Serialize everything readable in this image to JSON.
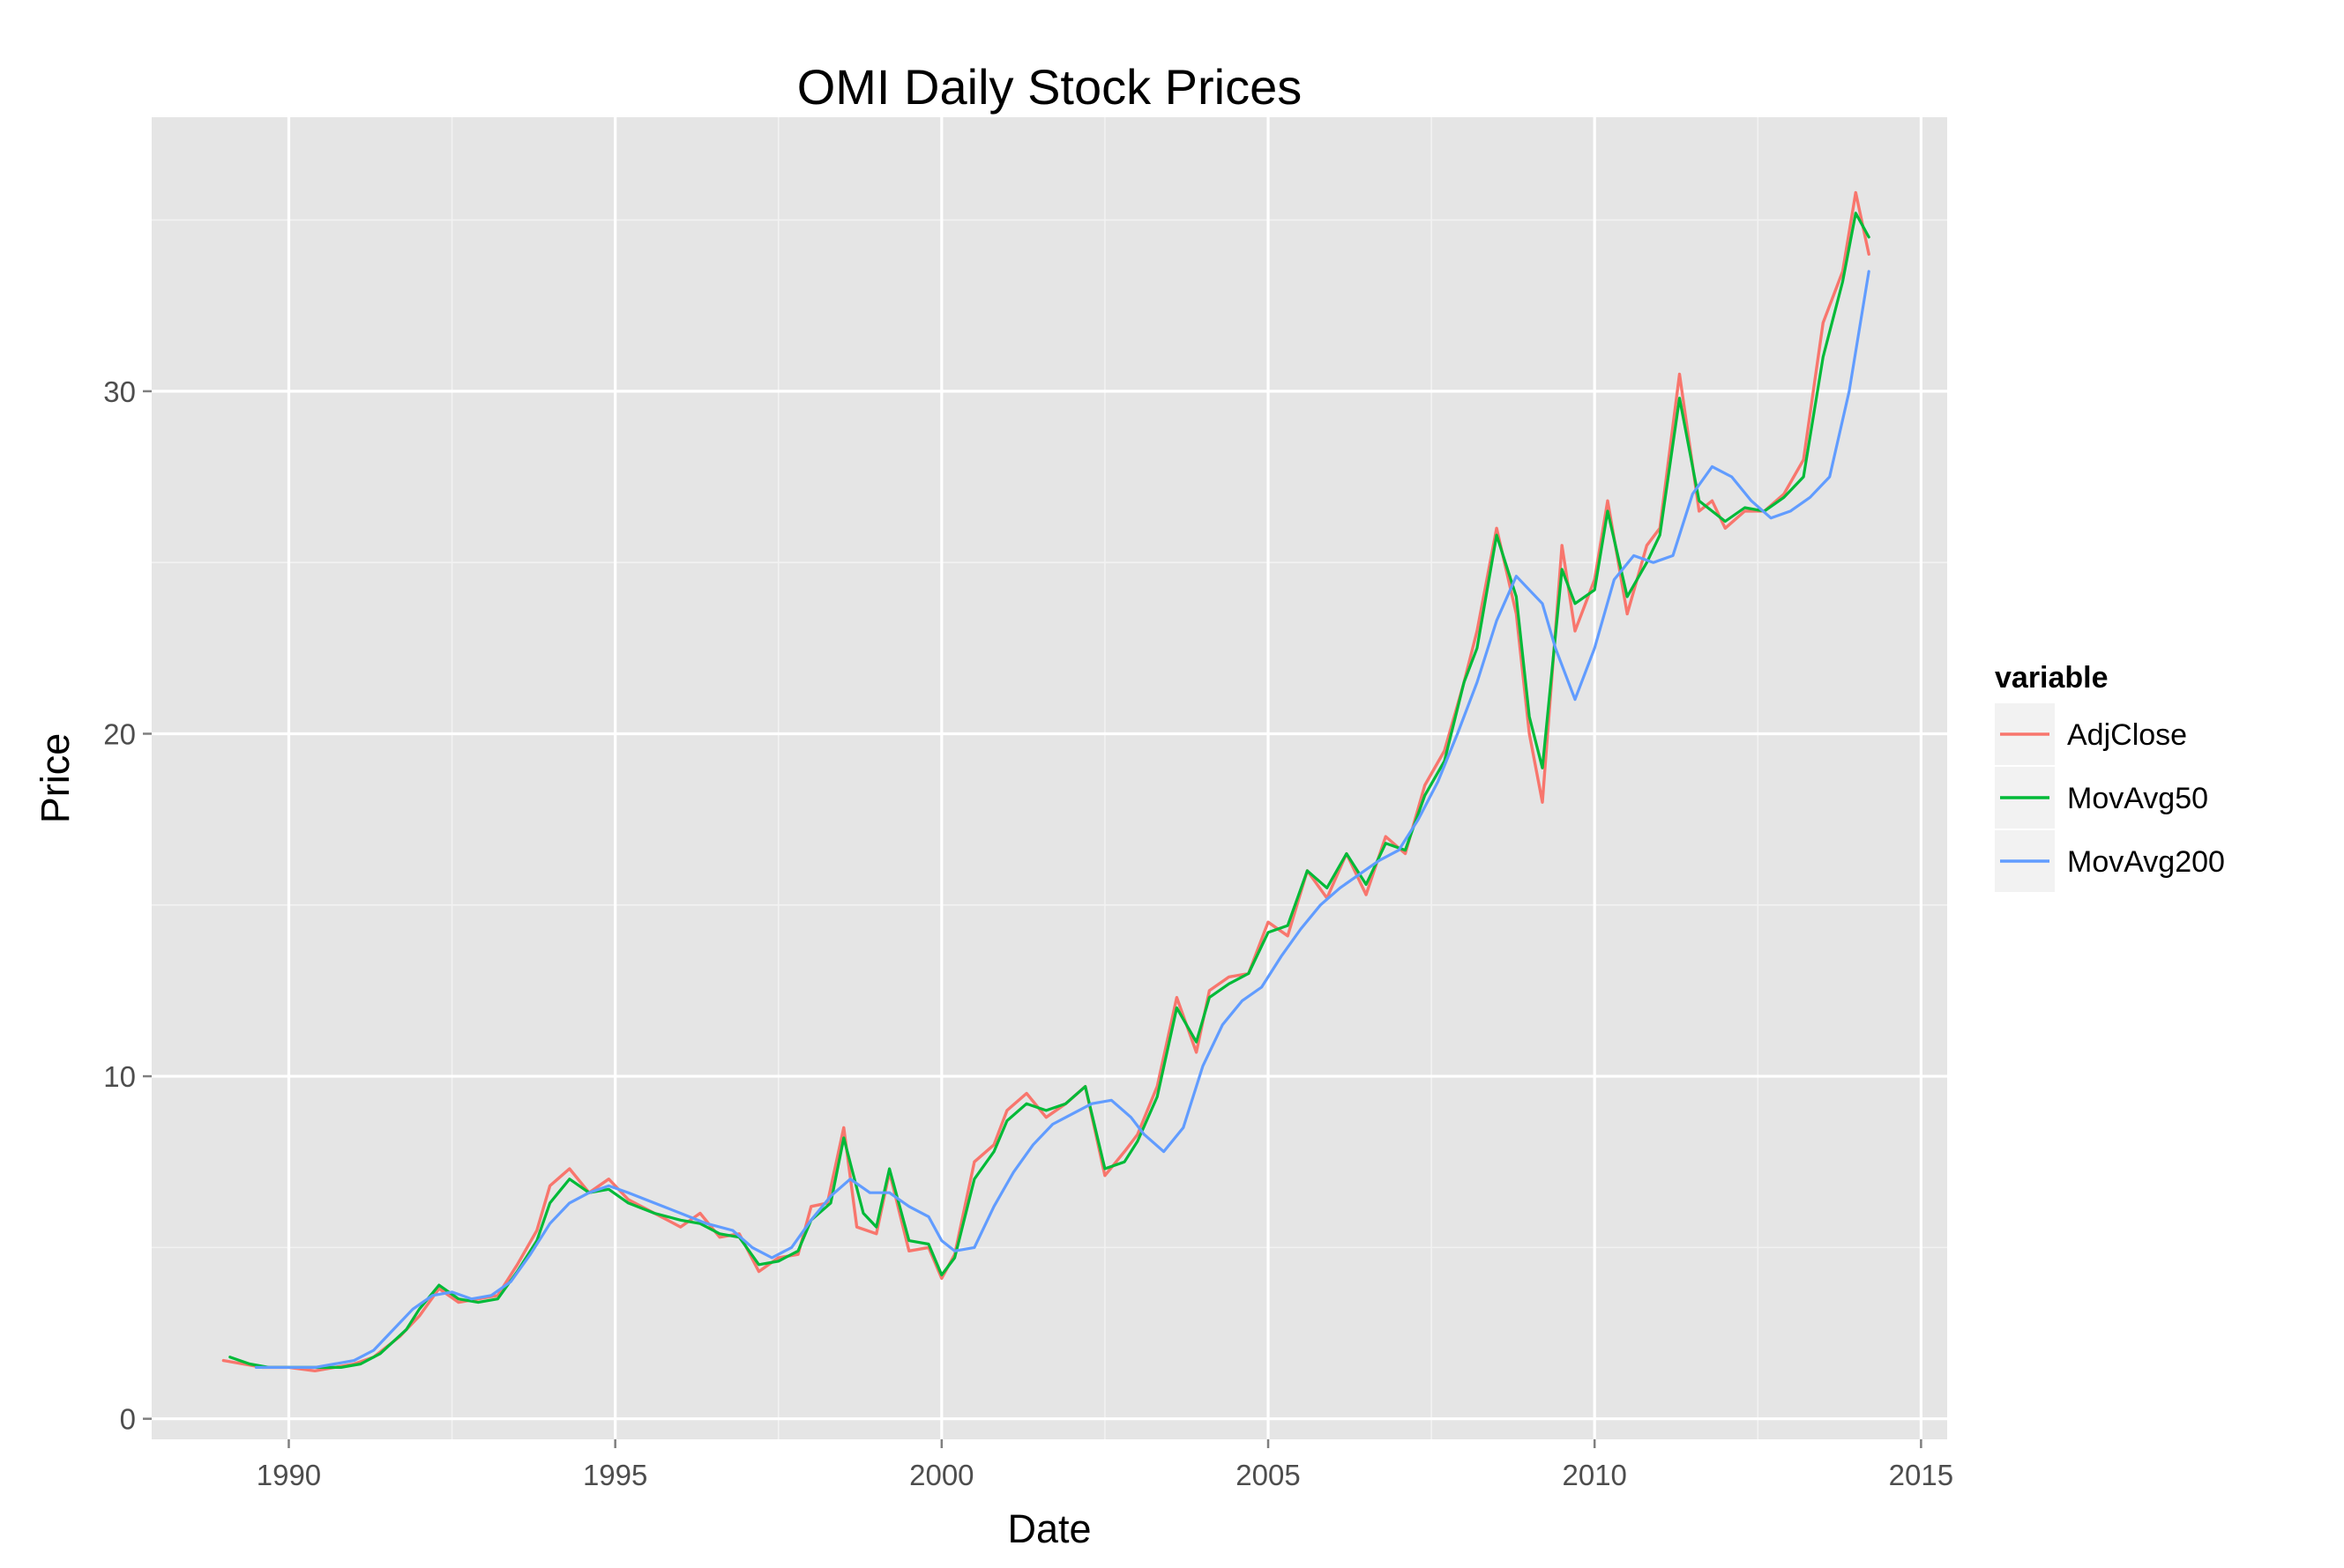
{
  "chart_data": {
    "type": "line",
    "title": "OMI Daily Stock Prices",
    "xlabel": "Date",
    "ylabel": "Price",
    "xlim": [
      1987.9,
      2015.4
    ],
    "ylim": [
      -0.6,
      38.0
    ],
    "x_ticks": [
      1990,
      1995,
      2000,
      2005,
      2010,
      2015
    ],
    "x_tick_labels": [
      "1990",
      "1995",
      "2000",
      "2005",
      "2010",
      "2015"
    ],
    "y_ticks": [
      0,
      10,
      20,
      30
    ],
    "y_tick_labels": [
      "0",
      "10",
      "20",
      "30"
    ],
    "grid": true,
    "legend": {
      "title": "variable",
      "position": "right"
    },
    "series": [
      {
        "name": "AdjClose",
        "color": "#F8766D",
        "x": [
          1989.0,
          1989.3,
          1989.6,
          1990.0,
          1990.4,
          1990.7,
          1991.0,
          1991.3,
          1991.7,
          1992.0,
          1992.3,
          1992.6,
          1992.9,
          1993.2,
          1993.5,
          1993.8,
          1994.0,
          1994.3,
          1994.6,
          1994.9,
          1995.2,
          1995.6,
          1996.0,
          1996.3,
          1996.6,
          1996.9,
          1997.2,
          1997.5,
          1997.8,
          1998.0,
          1998.25,
          1998.5,
          1998.7,
          1999.0,
          1999.2,
          1999.5,
          1999.8,
          2000.0,
          2000.2,
          2000.5,
          2000.8,
          2001.0,
          2001.3,
          2001.6,
          2001.9,
          2002.2,
          2002.5,
          2002.8,
          2003.0,
          2003.3,
          2003.6,
          2003.9,
          2004.1,
          2004.4,
          2004.7,
          2005.0,
          2005.3,
          2005.6,
          2005.9,
          2006.2,
          2006.5,
          2006.8,
          2007.1,
          2007.4,
          2007.7,
          2008.0,
          2008.2,
          2008.5,
          2008.8,
          2009.0,
          2009.2,
          2009.5,
          2009.7,
          2010.0,
          2010.2,
          2010.5,
          2010.8,
          2011.0,
          2011.3,
          2011.6,
          2011.8,
          2012.0,
          2012.3,
          2012.6,
          2012.9,
          2013.2,
          2013.5,
          2013.8,
          2014.0,
          2014.2
        ],
        "values": [
          1.7,
          1.6,
          1.5,
          1.5,
          1.4,
          1.5,
          1.6,
          1.8,
          2.4,
          3.0,
          3.8,
          3.4,
          3.5,
          3.6,
          4.5,
          5.5,
          6.8,
          7.3,
          6.6,
          7.0,
          6.4,
          6.0,
          5.6,
          6.0,
          5.3,
          5.4,
          4.3,
          4.7,
          4.8,
          6.2,
          6.3,
          8.5,
          5.6,
          5.4,
          7.2,
          4.9,
          5.0,
          4.1,
          4.8,
          7.5,
          8.0,
          9.0,
          9.5,
          8.8,
          9.2,
          9.7,
          7.1,
          7.8,
          8.3,
          9.7,
          12.3,
          10.7,
          12.5,
          12.9,
          13.0,
          14.5,
          14.1,
          16.0,
          15.2,
          16.5,
          15.3,
          17.0,
          16.5,
          18.5,
          19.5,
          21.5,
          23.0,
          26.0,
          23.5,
          20.0,
          18.0,
          25.5,
          23.0,
          24.5,
          26.8,
          23.5,
          25.5,
          26.0,
          30.5,
          26.5,
          26.8,
          26.0,
          26.5,
          26.5,
          27.0,
          28.0,
          32.0,
          33.5,
          35.8,
          34.0
        ]
      },
      {
        "name": "MovAvg50",
        "color": "#00BA38",
        "x": [
          1989.1,
          1989.4,
          1989.7,
          1990.0,
          1990.4,
          1990.8,
          1991.1,
          1991.4,
          1991.8,
          1992.0,
          1992.3,
          1992.6,
          1992.9,
          1993.2,
          1993.5,
          1993.8,
          1994.0,
          1994.3,
          1994.6,
          1994.9,
          1995.2,
          1995.6,
          1996.0,
          1996.3,
          1996.6,
          1996.9,
          1997.2,
          1997.5,
          1997.8,
          1998.0,
          1998.3,
          1998.5,
          1998.8,
          1999.0,
          1999.2,
          1999.5,
          1999.8,
          2000.0,
          2000.2,
          2000.5,
          2000.8,
          2001.0,
          2001.3,
          2001.6,
          2001.9,
          2002.2,
          2002.5,
          2002.8,
          2003.0,
          2003.3,
          2003.6,
          2003.9,
          2004.1,
          2004.4,
          2004.7,
          2005.0,
          2005.3,
          2005.6,
          2005.9,
          2006.2,
          2006.5,
          2006.8,
          2007.1,
          2007.4,
          2007.7,
          2008.0,
          2008.2,
          2008.5,
          2008.8,
          2009.0,
          2009.2,
          2009.5,
          2009.7,
          2010.0,
          2010.2,
          2010.5,
          2010.8,
          2011.0,
          2011.3,
          2011.6,
          2011.8,
          2012.0,
          2012.3,
          2012.6,
          2012.9,
          2013.2,
          2013.5,
          2013.8,
          2014.0,
          2014.2
        ],
        "values": [
          1.8,
          1.6,
          1.5,
          1.5,
          1.5,
          1.5,
          1.6,
          1.9,
          2.6,
          3.2,
          3.9,
          3.5,
          3.4,
          3.5,
          4.3,
          5.2,
          6.3,
          7.0,
          6.6,
          6.7,
          6.3,
          6.0,
          5.8,
          5.7,
          5.4,
          5.3,
          4.5,
          4.6,
          4.9,
          5.8,
          6.3,
          8.2,
          6.0,
          5.6,
          7.3,
          5.2,
          5.1,
          4.2,
          4.7,
          7.0,
          7.8,
          8.7,
          9.2,
          9.0,
          9.2,
          9.7,
          7.3,
          7.5,
          8.1,
          9.4,
          12.0,
          11.0,
          12.3,
          12.7,
          13.0,
          14.2,
          14.4,
          16.0,
          15.5,
          16.5,
          15.6,
          16.8,
          16.6,
          18.2,
          19.2,
          21.5,
          22.5,
          25.8,
          24.0,
          20.5,
          19.0,
          24.8,
          23.8,
          24.2,
          26.5,
          24.0,
          25.0,
          25.8,
          29.8,
          26.8,
          26.5,
          26.2,
          26.6,
          26.5,
          26.9,
          27.5,
          31.0,
          33.2,
          35.2,
          34.5
        ]
      },
      {
        "name": "MovAvg200",
        "color": "#619CFF",
        "x": [
          1989.5,
          1989.8,
          1990.1,
          1990.4,
          1990.7,
          1991.0,
          1991.3,
          1991.6,
          1991.9,
          1992.2,
          1992.5,
          1992.8,
          1993.1,
          1993.4,
          1993.7,
          1994.0,
          1994.3,
          1994.6,
          1994.9,
          1995.2,
          1995.6,
          1996.0,
          1996.4,
          1996.8,
          1997.1,
          1997.4,
          1997.7,
          1998.0,
          1998.3,
          1998.6,
          1998.9,
          1999.2,
          1999.5,
          1999.8,
          2000.0,
          2000.2,
          2000.5,
          2000.8,
          2001.1,
          2001.4,
          2001.7,
          2002.0,
          2002.3,
          2002.6,
          2002.9,
          2003.1,
          2003.4,
          2003.7,
          2004.0,
          2004.3,
          2004.6,
          2004.9,
          2005.2,
          2005.5,
          2005.8,
          2006.1,
          2006.4,
          2006.7,
          2007.0,
          2007.3,
          2007.6,
          2007.9,
          2008.2,
          2008.5,
          2008.8,
          2009.0,
          2009.2,
          2009.4,
          2009.7,
          2010.0,
          2010.3,
          2010.6,
          2010.9,
          2011.2,
          2011.5,
          2011.8,
          2012.1,
          2012.4,
          2012.7,
          2013.0,
          2013.3,
          2013.6,
          2013.9,
          2014.2
        ],
        "values": [
          1.5,
          1.5,
          1.5,
          1.5,
          1.6,
          1.7,
          2.0,
          2.6,
          3.2,
          3.6,
          3.7,
          3.5,
          3.6,
          4.0,
          4.8,
          5.7,
          6.3,
          6.6,
          6.8,
          6.6,
          6.3,
          6.0,
          5.7,
          5.5,
          5.0,
          4.7,
          5.0,
          5.8,
          6.5,
          7.0,
          6.6,
          6.6,
          6.2,
          5.9,
          5.2,
          4.9,
          5.0,
          6.2,
          7.2,
          8.0,
          8.6,
          8.9,
          9.2,
          9.3,
          8.8,
          8.3,
          7.8,
          8.5,
          10.3,
          11.5,
          12.2,
          12.6,
          13.5,
          14.3,
          15.0,
          15.5,
          15.9,
          16.3,
          16.6,
          17.5,
          18.6,
          20.0,
          21.5,
          23.3,
          24.6,
          24.2,
          23.8,
          22.5,
          21.0,
          22.5,
          24.5,
          25.2,
          25.0,
          25.2,
          27.0,
          27.8,
          27.5,
          26.8,
          26.3,
          26.5,
          26.9,
          27.5,
          30.0,
          33.5
        ]
      }
    ]
  }
}
